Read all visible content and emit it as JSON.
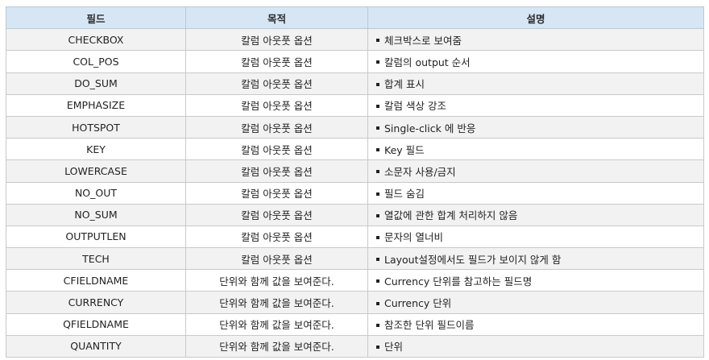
{
  "table": {
    "headers": [
      "필드",
      "목적",
      "설명"
    ],
    "rows": [
      {
        "field": "CHECKBOX",
        "purpose": "칼럼 아웃풋 옵션",
        "desc": "체크박스로 보여줌"
      },
      {
        "field": "COL_POS",
        "purpose": "칼럼 아웃풋 옵션",
        "desc": "칼럼의 output 순서"
      },
      {
        "field": "DO_SUM",
        "purpose": "칼럼 아웃풋 옵션",
        "desc": "합계 표시"
      },
      {
        "field": "EMPHASIZE",
        "purpose": "칼럼 아웃풋 옵션",
        "desc": "칼럼 색상 강조"
      },
      {
        "field": "HOTSPOT",
        "purpose": "칼럼 아웃풋 옵션",
        "desc": "Single-click 에 반응"
      },
      {
        "field": "KEY",
        "purpose": "칼럼 아웃풋 옵션",
        "desc": "Key 필드"
      },
      {
        "field": "LOWERCASE",
        "purpose": "칼럼 아웃풋 옵션",
        "desc": "소문자 사용/금지"
      },
      {
        "field": "NO_OUT",
        "purpose": "칼럼 아웃풋 옵션",
        "desc": "필드 숨김"
      },
      {
        "field": "NO_SUM",
        "purpose": "칼럼 아웃풋 옵션",
        "desc": "열값에 관한 합계 처리하지 않음"
      },
      {
        "field": "OUTPUTLEN",
        "purpose": "칼럼 아웃풋 옵션",
        "desc": "문자의 열너비"
      },
      {
        "field": "TECH",
        "purpose": "칼럼 아웃풋 옵션",
        "desc": "Layout설정에서도 필드가 보이지 않게 함"
      },
      {
        "field": "CFIELDNAME",
        "purpose": "단위와 함께 값을 보여준다.",
        "desc": "Currency 단위를 참고하는 필드명"
      },
      {
        "field": "CURRENCY",
        "purpose": "단위와 함께 값을 보여준다.",
        "desc": "Currency 단위"
      },
      {
        "field": "QFIELDNAME",
        "purpose": "단위와 함께 값을 보여준다.",
        "desc": "참조한 단위 필드이름"
      },
      {
        "field": "QUANTITY",
        "purpose": "단위와 함께 값을 보여준다.",
        "desc": "단위"
      }
    ]
  }
}
